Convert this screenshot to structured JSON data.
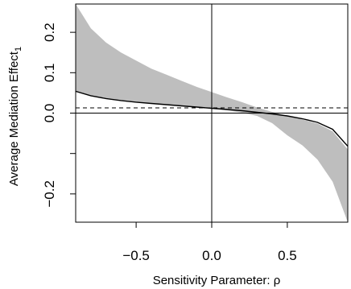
{
  "chart_data": {
    "type": "line",
    "xlabel": "Sensitivity Parameter: ρ",
    "ylabel": "Average Mediation Effect",
    "ylabel_subscript": "1",
    "xlim": [
      -0.9,
      0.9
    ],
    "ylim": [
      -0.27,
      0.27
    ],
    "x_ticks": [
      {
        "value": -0.5,
        "label": "−0.5"
      },
      {
        "value": 0.0,
        "label": "0.0"
      },
      {
        "value": 0.5,
        "label": "0.5"
      }
    ],
    "y_ticks": [
      {
        "value": -0.2,
        "label": "−0.2"
      },
      {
        "value": -0.1,
        "label": ""
      },
      {
        "value": 0.0,
        "label": "0.0"
      },
      {
        "value": 0.1,
        "label": "0.1"
      },
      {
        "value": 0.2,
        "label": "0.2"
      }
    ],
    "estimate": {
      "x": [
        -0.9,
        -0.8,
        -0.7,
        -0.6,
        -0.5,
        -0.4,
        -0.3,
        -0.2,
        -0.1,
        0.0,
        0.1,
        0.2,
        0.3,
        0.4,
        0.5,
        0.6,
        0.7,
        0.8,
        0.9
      ],
      "y": [
        0.054,
        0.043,
        0.036,
        0.031,
        0.027,
        0.024,
        0.021,
        0.018,
        0.015,
        0.012,
        0.009,
        0.006,
        0.002,
        -0.002,
        -0.007,
        -0.014,
        -0.023,
        -0.04,
        -0.082
      ]
    },
    "ci_upper": [
      0.27,
      0.21,
      0.175,
      0.15,
      0.13,
      0.11,
      0.095,
      0.08,
      0.065,
      0.052,
      0.039,
      0.027,
      0.014,
      0.003,
      -0.007,
      -0.016,
      -0.026,
      -0.045,
      -0.09
    ],
    "ci_lower": [
      0.055,
      0.044,
      0.037,
      0.032,
      0.028,
      0.025,
      0.021,
      0.018,
      0.015,
      0.012,
      0.007,
      0.001,
      -0.007,
      -0.025,
      -0.055,
      -0.08,
      -0.115,
      -0.17,
      -0.27
    ],
    "ci_color": "#bebebe",
    "reference_hline": 0.013,
    "zero_hline": 0.0,
    "zero_vline": 0.0
  }
}
